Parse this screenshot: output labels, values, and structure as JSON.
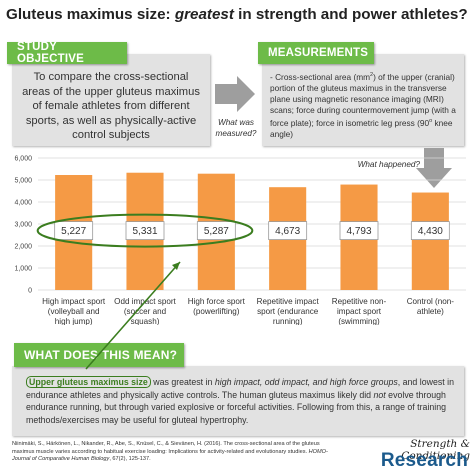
{
  "title": {
    "part1": "Gluteus maximus size: ",
    "part2": "greatest",
    "part3": " in strength and power athletes?"
  },
  "study_objective": {
    "heading": "STUDY OBJECTIVE",
    "text": "To compare the cross-sectional areas of the upper gluteus maximus of female athletes from different sports, as well as physically-active control subjects"
  },
  "arrow_label": "What was measured?",
  "measurements": {
    "heading": "MEASUREMENTS",
    "text_a": "- Cross-sectional area (mm",
    "text_sup": "2",
    "text_b": ") of the upper (cranial) portion of the gluteus maximus in the transverse plane using magnetic resonance imaging (MRI) scans; force during countermovement jump (with a force plate); force in isometric leg press (90",
    "text_deg": "o",
    "text_c": " knee angle)"
  },
  "what_happened": "What happened?",
  "chart_data": {
    "type": "bar",
    "categories": [
      [
        "High impact sport",
        "(volleyball and",
        "high jump)"
      ],
      [
        "Odd impact sport",
        "(soccer and",
        "squash)"
      ],
      [
        "High force sport",
        "(powerlifting)"
      ],
      [
        "Repetitive impact",
        "sport (endurance",
        "running)"
      ],
      [
        "Repetitive non-",
        "impact sport",
        "(swimming)"
      ],
      [
        "Control (non-",
        "athlete)"
      ]
    ],
    "values": [
      5227,
      5331,
      5287,
      4673,
      4793,
      4430
    ],
    "value_labels": [
      "5,227",
      "5,331",
      "5,287",
      "4,673",
      "4,793",
      "4,430"
    ],
    "ylim": [
      0,
      6000
    ],
    "yticks": [
      0,
      1000,
      2000,
      3000,
      4000,
      5000,
      6000
    ],
    "ytick_labels": [
      "0",
      "1,000",
      "2,000",
      "3,000",
      "4,000",
      "5,000",
      "6,000"
    ],
    "grid": true,
    "bar_color": "#f59a45",
    "highlight_color": "#3b7d1f",
    "title": "",
    "xlabel": "",
    "ylabel": ""
  },
  "meaning": {
    "heading": "WHAT DOES THIS MEAN?",
    "highlight": "Upper gluteus maximus size",
    "t1": " was greatest in ",
    "t2": "high impact, odd impact, and high force groups",
    "t3": ", and lowest in endurance athletes and physically active controls. The human gluteus maximus likely did ",
    "t4": "not",
    "t5": " evolve through endurance running, but through varied explosive or forceful activities. Following from this, a range of training methods/exercises may be useful for gluteal hypertrophy."
  },
  "citation": {
    "a": "Niinimäki, S., Härkönen, L., Nikander, R., Abe, S., Knüsel, C., & Sievänen, H. (2016). The cross-sectional area of the gluteus maximus muscle varies according to habitual exercise loading: Implications for activity-related and evolutionary studies. ",
    "journal": "HOMO-Journal of Comparative Human Biology",
    "b": ", 67(2), 125-137."
  },
  "brand": {
    "line1": "Strength & Conditioning",
    "line2": "Research"
  },
  "colors": {
    "green": "#6dbb48",
    "box_gray": "#e2e2e2",
    "arrow_gray": "#9e9e9e",
    "brand_blue": "#1b5a8c"
  }
}
